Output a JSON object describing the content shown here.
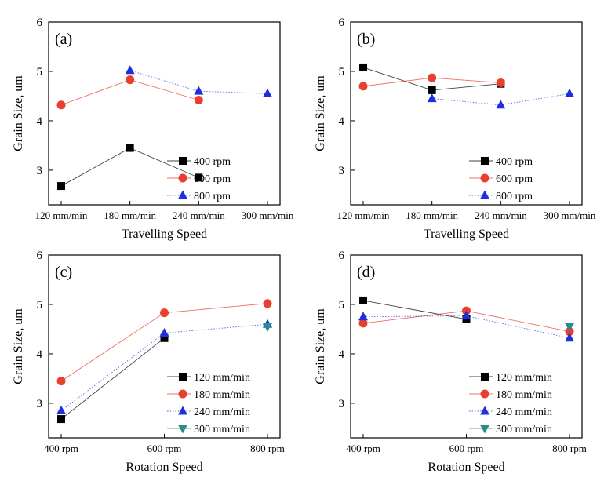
{
  "chart_data": [
    {
      "type": "line",
      "panel_label": "(a)",
      "xlabel": "Travelling Speed",
      "ylabel": "Grain Size, um",
      "categories": [
        "120 mm/min",
        "180 mm/min",
        "240 mm/min",
        "300 mm/min"
      ],
      "yticks": [
        "3",
        "4",
        "5",
        "6"
      ],
      "ylim": [
        2.3,
        6
      ],
      "grid": false,
      "legend_position": "bottom-right",
      "series": [
        {
          "name": "400 rpm",
          "values": [
            2.68,
            3.45,
            2.85,
            null
          ],
          "color": "#000000",
          "marker": "square",
          "line": "solid"
        },
        {
          "name": "600 rpm",
          "values": [
            4.32,
            4.83,
            4.42,
            null
          ],
          "color": "#e8402e",
          "marker": "circle",
          "line": "solid"
        },
        {
          "name": "800 rpm",
          "values": [
            null,
            5.02,
            4.6,
            4.55
          ],
          "color": "#1f2fe0",
          "marker": "triangle-up",
          "line": "dotted"
        }
      ]
    },
    {
      "type": "line",
      "panel_label": "(b)",
      "xlabel": "Travelling Speed",
      "ylabel": "Grain Size, um",
      "categories": [
        "120 mm/min",
        "180 mm/min",
        "240 mm/min",
        "300 mm/min"
      ],
      "yticks": [
        "3",
        "4",
        "5",
        "6"
      ],
      "ylim": [
        2.3,
        6
      ],
      "grid": false,
      "legend_position": "bottom-right",
      "series": [
        {
          "name": "400 rpm",
          "values": [
            5.08,
            4.62,
            4.75,
            null
          ],
          "color": "#000000",
          "marker": "square",
          "line": "solid"
        },
        {
          "name": "600 rpm",
          "values": [
            4.7,
            4.87,
            4.77,
            null
          ],
          "color": "#e8402e",
          "marker": "circle",
          "line": "solid"
        },
        {
          "name": "800 rpm",
          "values": [
            null,
            4.45,
            4.32,
            4.55
          ],
          "color": "#1f2fe0",
          "marker": "triangle-up",
          "line": "dotted"
        }
      ]
    },
    {
      "type": "line",
      "panel_label": "(c)",
      "xlabel": "Rotation Speed",
      "ylabel": "Grain Size, um",
      "categories": [
        "400 rpm",
        "600 rpm",
        "800 rpm"
      ],
      "yticks": [
        "3",
        "4",
        "5",
        "6"
      ],
      "ylim": [
        2.3,
        6
      ],
      "grid": false,
      "legend_position": "bottom-right",
      "series": [
        {
          "name": "120 mm/min",
          "values": [
            2.68,
            4.32,
            null
          ],
          "color": "#000000",
          "marker": "square",
          "line": "solid"
        },
        {
          "name": "180 mm/min",
          "values": [
            3.45,
            4.83,
            5.02
          ],
          "color": "#e8402e",
          "marker": "circle",
          "line": "solid"
        },
        {
          "name": "240 mm/min",
          "values": [
            2.85,
            4.42,
            4.6
          ],
          "color": "#1f2fe0",
          "marker": "triangle-up",
          "line": "dotted"
        },
        {
          "name": "300 mm/min",
          "values": [
            null,
            null,
            4.55
          ],
          "color": "#2e8b8b",
          "marker": "triangle-down",
          "line": "solid"
        }
      ]
    },
    {
      "type": "line",
      "panel_label": "(d)",
      "xlabel": "Rotation Speed",
      "ylabel": "Grain Size, um",
      "categories": [
        "400 rpm",
        "600 rpm",
        "800 rpm"
      ],
      "yticks": [
        "3",
        "4",
        "5",
        "6"
      ],
      "ylim": [
        2.3,
        6
      ],
      "grid": false,
      "legend_position": "bottom-right",
      "series": [
        {
          "name": "120 mm/min",
          "values": [
            5.08,
            4.7,
            null
          ],
          "color": "#000000",
          "marker": "square",
          "line": "solid"
        },
        {
          "name": "180 mm/min",
          "values": [
            4.62,
            4.87,
            4.45
          ],
          "color": "#e8402e",
          "marker": "circle",
          "line": "solid"
        },
        {
          "name": "240 mm/min",
          "values": [
            4.75,
            4.77,
            4.32
          ],
          "color": "#1f2fe0",
          "marker": "triangle-up",
          "line": "dotted"
        },
        {
          "name": "300 mm/min",
          "values": [
            null,
            null,
            4.55
          ],
          "color": "#2e8b8b",
          "marker": "triangle-down",
          "line": "solid"
        }
      ]
    }
  ]
}
